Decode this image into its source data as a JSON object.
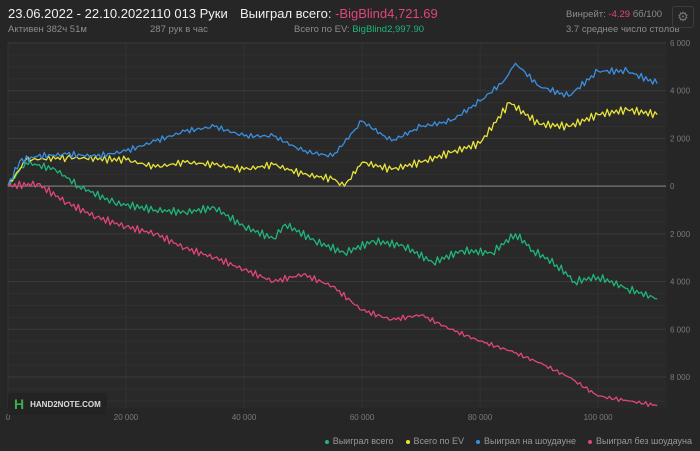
{
  "header": {
    "date_range": "23.06.2022 - 22.10.2022",
    "active": "Активен 382ч 51м",
    "hands": "110 013 Руки",
    "hands_per_hour": "287 рук в час",
    "won_total_label": "Выиграл всего:",
    "won_total_value": "-BigBlind4,721.69",
    "ev_label": "Всего по EV:",
    "ev_value": "BigBlind2,997.90",
    "winrate_label": "Винрейт:",
    "winrate_value": "-4.29",
    "winrate_unit": "бб/100",
    "avg_tables": "3.7 среднее число столов",
    "settings_icon": "gear-icon"
  },
  "logo": {
    "text": "HAND2NOTE.COM"
  },
  "chart_data": {
    "type": "line",
    "title": "",
    "xlabel": "",
    "ylabel": "",
    "xlim": [
      0,
      111500
    ],
    "ylim": [
      -9300,
      6000
    ],
    "x_ticks": [
      0,
      20000,
      40000,
      60000,
      80000,
      100000
    ],
    "x_tick_labels": [
      "0",
      "20 000",
      "40 000",
      "60 000",
      "80 000",
      "100 000"
    ],
    "y_ticks": [
      6000,
      4000,
      2000,
      0,
      -2000,
      -4000,
      -6000,
      -8000
    ],
    "y_tick_labels": [
      "6 000",
      "4 000",
      "2 000",
      "0",
      "2 000",
      "4 000",
      "6 000",
      "8 000"
    ],
    "grid": true,
    "legend_position": "bottom-right",
    "series": [
      {
        "name": "Выиграл всего",
        "color": "#1fb57a",
        "points": [
          [
            0,
            0
          ],
          [
            3000,
            1000
          ],
          [
            8000,
            700
          ],
          [
            12000,
            0
          ],
          [
            18000,
            -700
          ],
          [
            25000,
            -1000
          ],
          [
            30000,
            -1100
          ],
          [
            35000,
            -900
          ],
          [
            40000,
            -1700
          ],
          [
            45000,
            -2200
          ],
          [
            47000,
            -1600
          ],
          [
            52000,
            -2300
          ],
          [
            57000,
            -2800
          ],
          [
            62000,
            -2300
          ],
          [
            67000,
            -2500
          ],
          [
            72000,
            -3200
          ],
          [
            77000,
            -2700
          ],
          [
            82000,
            -2800
          ],
          [
            86000,
            -2000
          ],
          [
            89000,
            -2700
          ],
          [
            93000,
            -3300
          ],
          [
            96000,
            -4000
          ],
          [
            100000,
            -3800
          ],
          [
            105000,
            -4300
          ],
          [
            110013,
            -4722
          ]
        ]
      },
      {
        "name": "Всего по EV",
        "color": "#e8e43a",
        "points": [
          [
            0,
            0
          ],
          [
            3000,
            1100
          ],
          [
            10000,
            1200
          ],
          [
            20000,
            1100
          ],
          [
            25000,
            800
          ],
          [
            30000,
            1000
          ],
          [
            35000,
            900
          ],
          [
            40000,
            700
          ],
          [
            45000,
            900
          ],
          [
            50000,
            500
          ],
          [
            55000,
            300
          ],
          [
            57000,
            0
          ],
          [
            60000,
            1000
          ],
          [
            65000,
            700
          ],
          [
            70000,
            1000
          ],
          [
            75000,
            1400
          ],
          [
            80000,
            1800
          ],
          [
            85000,
            3500
          ],
          [
            90000,
            2600
          ],
          [
            95000,
            2500
          ],
          [
            100000,
            3000
          ],
          [
            105000,
            3200
          ],
          [
            110013,
            2998
          ]
        ]
      },
      {
        "name": "Выиграл на шоудауне",
        "color": "#3a8fe0",
        "points": [
          [
            0,
            0
          ],
          [
            2000,
            1050
          ],
          [
            5000,
            1250
          ],
          [
            10000,
            1340
          ],
          [
            15000,
            1250
          ],
          [
            20000,
            1470
          ],
          [
            25000,
            1890
          ],
          [
            30000,
            2300
          ],
          [
            35000,
            2500
          ],
          [
            40000,
            2100
          ],
          [
            45000,
            2100
          ],
          [
            50000,
            1470
          ],
          [
            55000,
            1250
          ],
          [
            60000,
            2720
          ],
          [
            65000,
            1890
          ],
          [
            70000,
            2500
          ],
          [
            75000,
            2720
          ],
          [
            80000,
            3560
          ],
          [
            84000,
            4400
          ],
          [
            86000,
            5150
          ],
          [
            90000,
            4190
          ],
          [
            95000,
            3770
          ],
          [
            100000,
            4820
          ],
          [
            105000,
            4820
          ],
          [
            110013,
            4300
          ]
        ]
      },
      {
        "name": "Выиграл без шоудауна",
        "color": "#e0457b",
        "points": [
          [
            0,
            0
          ],
          [
            5000,
            100
          ],
          [
            10000,
            -700
          ],
          [
            15000,
            -1300
          ],
          [
            20000,
            -1700
          ],
          [
            25000,
            -2000
          ],
          [
            30000,
            -2600
          ],
          [
            35000,
            -3000
          ],
          [
            40000,
            -3500
          ],
          [
            45000,
            -4000
          ],
          [
            50000,
            -3700
          ],
          [
            55000,
            -4200
          ],
          [
            60000,
            -5200
          ],
          [
            65000,
            -5600
          ],
          [
            70000,
            -5400
          ],
          [
            75000,
            -6000
          ],
          [
            80000,
            -6500
          ],
          [
            85000,
            -6900
          ],
          [
            90000,
            -7400
          ],
          [
            95000,
            -8000
          ],
          [
            100000,
            -8800
          ],
          [
            105000,
            -9000
          ],
          [
            110013,
            -9200
          ]
        ]
      }
    ]
  }
}
